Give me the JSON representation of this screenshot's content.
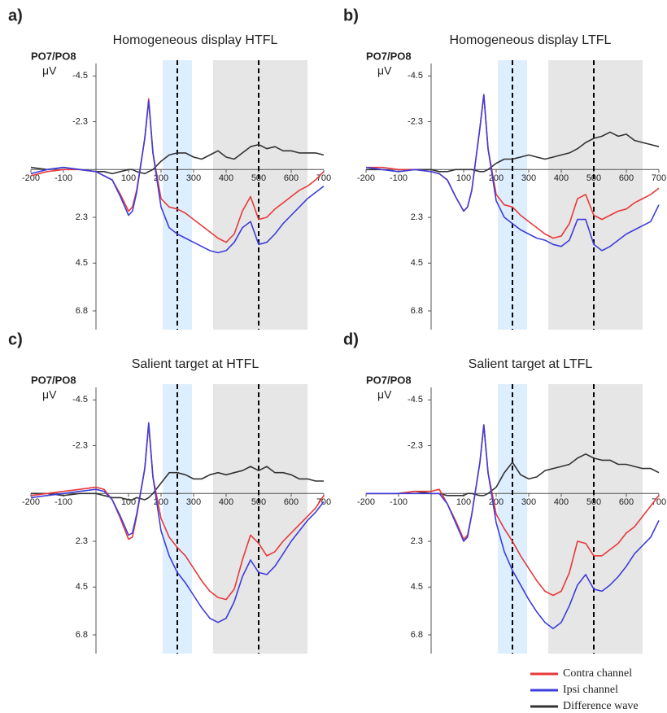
{
  "chart_data": [
    {
      "type": "line",
      "panel_label": "a)",
      "title": "Homogeneous display HTFL",
      "channel_label": "PO7/PO8",
      "y_unit": "μV",
      "x": [
        -200,
        -150,
        -100,
        -50,
        0,
        25,
        50,
        75,
        100,
        112,
        125,
        150,
        162,
        175,
        200,
        225,
        250,
        275,
        300,
        325,
        350,
        375,
        400,
        425,
        450,
        475,
        500,
        525,
        550,
        575,
        600,
        625,
        650,
        675,
        700
      ],
      "series": [
        {
          "name": "Contra channel",
          "color": "#e8393a",
          "values": [
            0.3,
            0.1,
            0,
            0,
            0.1,
            0.3,
            0.5,
            1.2,
            2.0,
            1.8,
            1.0,
            -1.5,
            -3.4,
            -0.8,
            1.4,
            1.8,
            1.9,
            2.1,
            2.4,
            2.7,
            3.0,
            3.3,
            3.5,
            3.1,
            2.0,
            1.3,
            2.4,
            2.3,
            1.9,
            1.6,
            1.3,
            1.0,
            0.8,
            0.5,
            0.1
          ]
        },
        {
          "name": "Ipsi channel",
          "color": "#3d3ddb",
          "values": [
            0.2,
            0,
            -0.1,
            0,
            0.1,
            0.3,
            0.5,
            1.3,
            2.2,
            2.0,
            1.1,
            -1.5,
            -3.3,
            -0.8,
            1.8,
            2.8,
            3.1,
            3.3,
            3.5,
            3.7,
            3.9,
            4.0,
            3.9,
            3.5,
            2.8,
            2.5,
            3.6,
            3.5,
            3.1,
            2.6,
            2.2,
            1.8,
            1.4,
            1.1,
            0.8
          ]
        },
        {
          "name": "Difference wave",
          "color": "#333333",
          "values": [
            -0.1,
            0,
            -0.1,
            0,
            0.1,
            0.1,
            0.2,
            0.1,
            0,
            0,
            0.1,
            0.2,
            0.1,
            0,
            -0.4,
            -0.7,
            -0.8,
            -0.8,
            -0.6,
            -0.5,
            -0.7,
            -0.9,
            -0.6,
            -0.5,
            -0.8,
            -1.1,
            -1.2,
            -1.0,
            -1.1,
            -0.9,
            -0.9,
            -0.8,
            -0.8,
            -0.8,
            -0.7
          ]
        }
      ],
      "xlim": [
        -200,
        700
      ],
      "xticks": [
        -200,
        -100,
        100,
        200,
        300,
        400,
        500,
        600,
        700
      ],
      "ylim": [
        -5.1,
        7.7
      ],
      "y_inverted": true,
      "yticks": [
        -4.5,
        -2.3,
        2.3,
        4.5,
        6.8
      ],
      "bands": [
        {
          "from": 205,
          "to": 295,
          "color": "#ddeeff"
        },
        {
          "from": 360,
          "to": 650,
          "color": "#e6e6e6"
        }
      ],
      "vlines": [
        250,
        500
      ]
    },
    {
      "type": "line",
      "panel_label": "b)",
      "title": "Homogeneous display LTFL",
      "channel_label": "PO7/PO8",
      "y_unit": "μV",
      "x": [
        -200,
        -150,
        -100,
        -50,
        0,
        25,
        50,
        75,
        100,
        112,
        125,
        150,
        162,
        175,
        200,
        225,
        250,
        275,
        300,
        325,
        350,
        375,
        400,
        425,
        450,
        475,
        500,
        525,
        550,
        575,
        600,
        625,
        650,
        675,
        700
      ],
      "series": [
        {
          "name": "Contra channel",
          "color": "#e8393a",
          "values": [
            -0.1,
            -0.1,
            0,
            0,
            0.1,
            0.2,
            0.5,
            1.3,
            2.0,
            1.8,
            1.0,
            -2.0,
            -3.6,
            -1.0,
            1.2,
            1.7,
            1.8,
            2.2,
            2.5,
            2.8,
            3.1,
            3.3,
            3.2,
            2.6,
            1.4,
            1.2,
            2.2,
            2.4,
            2.2,
            2.0,
            1.9,
            1.6,
            1.4,
            1.2,
            0.9
          ]
        },
        {
          "name": "Ipsi channel",
          "color": "#3d3ddb",
          "values": [
            -0.1,
            0,
            0.1,
            0,
            0.1,
            0.2,
            0.5,
            1.3,
            2.0,
            1.8,
            1.0,
            -2.0,
            -3.6,
            -1.0,
            1.5,
            2.3,
            2.6,
            2.9,
            3.1,
            3.3,
            3.4,
            3.6,
            3.7,
            3.4,
            2.4,
            2.4,
            3.6,
            3.9,
            3.7,
            3.4,
            3.1,
            2.9,
            2.7,
            2.5,
            1.7
          ]
        },
        {
          "name": "Difference wave",
          "color": "#333333",
          "values": [
            0,
            0,
            0.1,
            0,
            0,
            0.1,
            0.1,
            0,
            0,
            0,
            0,
            0.1,
            0.1,
            0,
            -0.3,
            -0.5,
            -0.5,
            -0.6,
            -0.7,
            -0.6,
            -0.5,
            -0.6,
            -0.7,
            -0.8,
            -1.0,
            -1.3,
            -1.5,
            -1.6,
            -1.8,
            -1.6,
            -1.7,
            -1.4,
            -1.3,
            -1.2,
            -1.1
          ]
        }
      ],
      "xlim": [
        -200,
        700
      ],
      "xticks": [
        -200,
        -100,
        100,
        200,
        300,
        400,
        500,
        600,
        700
      ],
      "ylim": [
        -5.1,
        7.7
      ],
      "y_inverted": true,
      "yticks": [
        -4.5,
        -2.3,
        2.3,
        4.5,
        6.8
      ],
      "bands": [
        {
          "from": 205,
          "to": 295,
          "color": "#ddeeff"
        },
        {
          "from": 360,
          "to": 650,
          "color": "#e6e6e6"
        }
      ],
      "vlines": [
        250,
        500
      ]
    },
    {
      "type": "line",
      "panel_label": "c)",
      "title": "Salient target at HTFL",
      "channel_label": "PO7/PO8",
      "y_unit": "μV",
      "x": [
        -200,
        -150,
        -100,
        -50,
        0,
        25,
        50,
        75,
        100,
        112,
        125,
        150,
        162,
        175,
        200,
        225,
        250,
        275,
        300,
        325,
        350,
        375,
        400,
        425,
        450,
        475,
        500,
        525,
        550,
        575,
        600,
        625,
        650,
        675,
        700
      ],
      "series": [
        {
          "name": "Contra channel",
          "color": "#e8393a",
          "values": [
            0.1,
            0,
            -0.1,
            -0.2,
            -0.3,
            -0.2,
            0.3,
            1.2,
            2.2,
            2.1,
            1.1,
            -1.2,
            -3.3,
            -0.8,
            1.2,
            2.1,
            2.6,
            3.0,
            3.6,
            4.2,
            4.7,
            5.0,
            5.1,
            4.6,
            3.2,
            2.0,
            2.4,
            3.0,
            2.8,
            2.3,
            1.9,
            1.5,
            1.1,
            0.7,
            0.1
          ]
        },
        {
          "name": "Ipsi channel",
          "color": "#3d3ddb",
          "values": [
            0.2,
            0.1,
            0,
            -0.1,
            -0.2,
            -0.1,
            0.3,
            1.1,
            2.0,
            1.9,
            1.0,
            -1.2,
            -3.4,
            -0.8,
            1.8,
            3.0,
            3.8,
            4.3,
            4.9,
            5.5,
            6.0,
            6.2,
            6.0,
            5.2,
            4.0,
            3.2,
            3.8,
            3.9,
            3.5,
            2.9,
            2.3,
            1.8,
            1.3,
            0.9,
            0.4
          ]
        },
        {
          "name": "Difference wave",
          "color": "#333333",
          "values": [
            0,
            0,
            0.1,
            0,
            0,
            0.1,
            0.2,
            0.2,
            0.3,
            0.3,
            0.2,
            0.3,
            0.2,
            0,
            -0.5,
            -1.0,
            -1.0,
            -0.9,
            -0.7,
            -0.7,
            -0.9,
            -1.0,
            -0.9,
            -1.0,
            -1.1,
            -1.3,
            -1.1,
            -1.3,
            -1.0,
            -1.0,
            -0.9,
            -0.7,
            -0.7,
            -0.6,
            -0.6
          ]
        }
      ],
      "xlim": [
        -200,
        700
      ],
      "xticks": [
        -200,
        -100,
        100,
        200,
        300,
        400,
        500,
        600,
        700
      ],
      "ylim": [
        -5.1,
        7.7
      ],
      "y_inverted": true,
      "yticks": [
        -4.5,
        -2.3,
        2.3,
        4.5,
        6.8
      ],
      "bands": [
        {
          "from": 205,
          "to": 295,
          "color": "#ddeeff"
        },
        {
          "from": 360,
          "to": 650,
          "color": "#e6e6e6"
        }
      ],
      "vlines": [
        250,
        500
      ]
    },
    {
      "type": "line",
      "panel_label": "d)",
      "title": "Salient target at LTFL",
      "channel_label": "PO7/PO8",
      "y_unit": "μV",
      "x": [
        -200,
        -150,
        -100,
        -50,
        0,
        25,
        50,
        75,
        100,
        112,
        125,
        150,
        162,
        175,
        200,
        225,
        250,
        275,
        300,
        325,
        350,
        375,
        400,
        425,
        450,
        475,
        500,
        525,
        550,
        575,
        600,
        625,
        650,
        675,
        700
      ],
      "series": [
        {
          "name": "Contra channel",
          "color": "#e8393a",
          "values": [
            0,
            0,
            0,
            -0.1,
            -0.1,
            -0.2,
            0.5,
            1.3,
            2.2,
            2.0,
            1.0,
            -1.5,
            -3.3,
            -1.0,
            1.0,
            1.7,
            2.3,
            3.0,
            3.6,
            4.2,
            4.7,
            4.9,
            4.7,
            3.8,
            2.3,
            2.4,
            3.0,
            3.0,
            2.7,
            2.4,
            1.9,
            1.6,
            1.1,
            0.6,
            0.1
          ]
        },
        {
          "name": "Ipsi channel",
          "color": "#3d3ddb",
          "values": [
            0,
            0,
            0,
            0,
            0,
            0,
            0.5,
            1.4,
            2.3,
            2.1,
            1.0,
            -1.5,
            -3.3,
            -1.0,
            1.4,
            2.8,
            3.7,
            4.4,
            5.1,
            5.7,
            6.2,
            6.5,
            6.2,
            5.4,
            4.4,
            3.9,
            4.6,
            4.7,
            4.4,
            4.0,
            3.5,
            2.9,
            2.5,
            2.1,
            1.3
          ]
        },
        {
          "name": "Difference wave",
          "color": "#333333",
          "values": [
            0,
            0,
            0,
            -0.1,
            0,
            0,
            0.1,
            0.1,
            0.1,
            0,
            0,
            0.1,
            0.1,
            0,
            -0.3,
            -1.0,
            -1.5,
            -0.9,
            -0.7,
            -0.8,
            -1.1,
            -1.2,
            -1.3,
            -1.4,
            -1.7,
            -1.9,
            -1.7,
            -1.6,
            -1.6,
            -1.4,
            -1.4,
            -1.3,
            -1.2,
            -1.2,
            -1.0
          ]
        }
      ],
      "xlim": [
        -200,
        700
      ],
      "xticks": [
        -200,
        -100,
        100,
        200,
        300,
        400,
        500,
        600,
        700
      ],
      "ylim": [
        -5.1,
        7.7
      ],
      "y_inverted": true,
      "yticks": [
        -4.5,
        -2.3,
        2.3,
        4.5,
        6.8
      ],
      "bands": [
        {
          "from": 205,
          "to": 295,
          "color": "#ddeeff"
        },
        {
          "from": 360,
          "to": 650,
          "color": "#e6e6e6"
        }
      ],
      "vlines": [
        250,
        500
      ]
    }
  ]
}
